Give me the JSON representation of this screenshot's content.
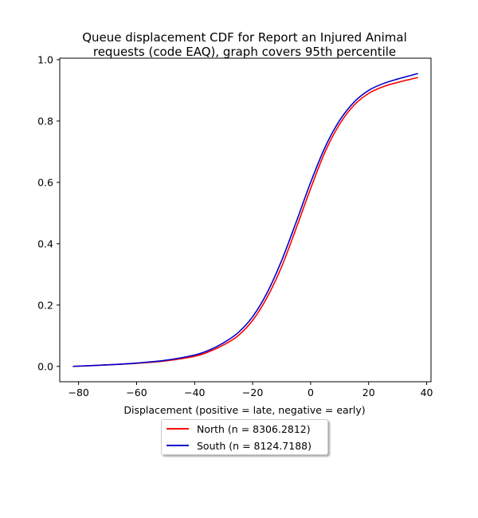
{
  "chart_data": {
    "type": "line",
    "title_lines": [
      "Queue displacement CDF for Report an Injured Animal",
      "requests (code EAQ), graph covers 95th percentile"
    ],
    "xlabel": "Displacement (positive = late, negative = early)",
    "ylabel": "",
    "xlim": [
      -86.5,
      41.5
    ],
    "ylim": [
      -0.05,
      1.005
    ],
    "xticks": [
      -80,
      -60,
      -40,
      -20,
      0,
      20,
      40
    ],
    "xtick_labels": [
      "−80",
      "−60",
      "−40",
      "−20",
      "0",
      "20",
      "40"
    ],
    "yticks": [
      0.0,
      0.2,
      0.4,
      0.6,
      0.8,
      1.0
    ],
    "ytick_labels": [
      "0.0",
      "0.2",
      "0.4",
      "0.6",
      "0.8",
      "1.0"
    ],
    "grid": false,
    "legend_position": "below-center",
    "series": [
      {
        "name": "North (n = 8306.2812)",
        "color": "#ff0000",
        "x": [
          -82,
          -70,
          -60,
          -50,
          -40,
          -35,
          -30,
          -25,
          -20,
          -15,
          -10,
          -5,
          0,
          5,
          10,
          15,
          20,
          25,
          30,
          37
        ],
        "y": [
          0.0,
          0.005,
          0.01,
          0.018,
          0.033,
          0.048,
          0.07,
          0.1,
          0.15,
          0.225,
          0.325,
          0.45,
          0.58,
          0.7,
          0.79,
          0.852,
          0.89,
          0.912,
          0.926,
          0.942
        ]
      },
      {
        "name": "South (n = 8124.7188)",
        "color": "#0000cd",
        "x": [
          -82,
          -70,
          -60,
          -50,
          -40,
          -35,
          -30,
          -25,
          -20,
          -15,
          -10,
          -5,
          0,
          5,
          10,
          15,
          20,
          25,
          30,
          37
        ],
        "y": [
          0.0,
          0.005,
          0.011,
          0.02,
          0.037,
          0.053,
          0.077,
          0.11,
          0.162,
          0.24,
          0.345,
          0.47,
          0.6,
          0.715,
          0.802,
          0.862,
          0.9,
          0.922,
          0.937,
          0.955
        ]
      }
    ]
  }
}
